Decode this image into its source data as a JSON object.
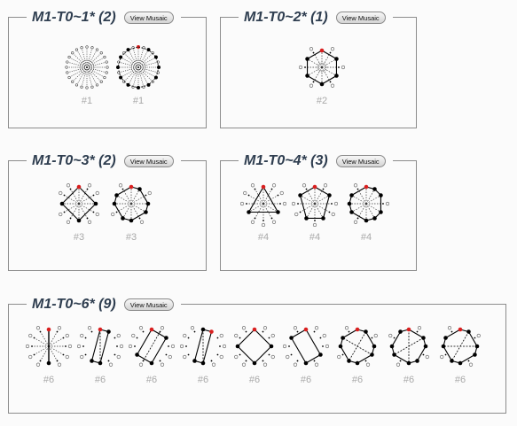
{
  "groups": [
    {
      "title": "M1-T0~1* (2)",
      "button": "View Musaic",
      "items": [
        {
          "label": "#1",
          "variant": "dense"
        },
        {
          "label": "#1",
          "variant": "dense-red"
        }
      ]
    },
    {
      "title": "M1-T0~2* (1)",
      "button": "View Musaic",
      "items": [
        {
          "label": "#2",
          "variant": "hexagon"
        }
      ]
    },
    {
      "title": "M1-T0~3* (2)",
      "button": "View Musaic",
      "items": [
        {
          "label": "#3",
          "variant": "square"
        },
        {
          "label": "#3",
          "variant": "octagon"
        }
      ]
    },
    {
      "title": "M1-T0~4* (3)",
      "button": "View Musaic",
      "items": [
        {
          "label": "#4",
          "variant": "triangle"
        },
        {
          "label": "#4",
          "variant": "pentagon"
        },
        {
          "label": "#4",
          "variant": "decagon"
        }
      ]
    },
    {
      "title": "M1-T0~6* (9)",
      "button": "View Musaic",
      "items": [
        {
          "label": "#6",
          "variant": "line"
        },
        {
          "label": "#6",
          "variant": "slant"
        },
        {
          "label": "#6",
          "variant": "rect-a"
        },
        {
          "label": "#6",
          "variant": "rect-b"
        },
        {
          "label": "#6",
          "variant": "quad-a"
        },
        {
          "label": "#6",
          "variant": "quad-b"
        },
        {
          "label": "#6",
          "variant": "oct-a"
        },
        {
          "label": "#6",
          "variant": "oct-b"
        },
        {
          "label": "#6",
          "variant": "oct-c"
        }
      ]
    }
  ],
  "colors": {
    "accent_dot": "#d91f1f",
    "border": "#8c8c8c",
    "title": "#2f3e50",
    "label": "#a9a9a9"
  }
}
